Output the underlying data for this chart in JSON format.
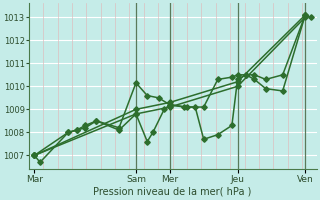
{
  "xlabel": "Pression niveau de la mer( hPa )",
  "bg_color": "#c5ece8",
  "grid_color_h": "#ffffff",
  "grid_color_v": "#ddbfbf",
  "line_color": "#2d6e2d",
  "ylim": [
    1006.4,
    1013.6
  ],
  "yticks": [
    1007,
    1008,
    1009,
    1010,
    1011,
    1012,
    1013
  ],
  "xtick_labels": [
    "Mar",
    "Sam",
    "Mer",
    "Jeu",
    "Ven"
  ],
  "xtick_positions": [
    0,
    36,
    48,
    72,
    96
  ],
  "xlim": [
    -2,
    100
  ],
  "vline_positions": [
    36,
    48,
    72,
    96
  ],
  "vline_color": "#5a7a5a",
  "marker": "D",
  "markersize": 2.8,
  "linewidth": 1.1,
  "lines": [
    {
      "x": [
        0,
        2,
        12,
        15,
        18,
        22,
        30,
        36,
        40,
        42,
        46,
        48,
        53,
        57,
        60,
        65,
        70,
        72,
        75,
        78,
        82,
        88,
        96,
        98
      ],
      "y": [
        1007.0,
        1006.7,
        1008.0,
        1008.1,
        1008.3,
        1008.5,
        1008.1,
        1008.8,
        1007.6,
        1008.0,
        1009.0,
        1009.2,
        1009.1,
        1009.1,
        1007.7,
        1007.9,
        1008.3,
        1010.3,
        1010.5,
        1010.5,
        1010.3,
        1010.5,
        1013.1,
        1013.0
      ]
    },
    {
      "x": [
        0,
        36,
        48,
        72,
        96
      ],
      "y": [
        1007.0,
        1009.0,
        1009.3,
        1010.2,
        1013.1
      ]
    },
    {
      "x": [
        0,
        36,
        48,
        72,
        96
      ],
      "y": [
        1007.0,
        1008.8,
        1009.1,
        1010.0,
        1013.0
      ]
    },
    {
      "x": [
        0,
        12,
        15,
        18,
        22,
        30,
        36,
        40,
        44,
        48,
        54,
        60,
        65,
        70,
        72,
        75,
        78,
        82,
        88,
        96
      ],
      "y": [
        1007.0,
        1008.0,
        1008.1,
        1008.2,
        1008.5,
        1008.2,
        1010.15,
        1009.6,
        1009.5,
        1009.2,
        1009.1,
        1009.1,
        1010.3,
        1010.4,
        1010.5,
        1010.5,
        1010.3,
        1009.9,
        1009.8,
        1013.1
      ]
    }
  ]
}
